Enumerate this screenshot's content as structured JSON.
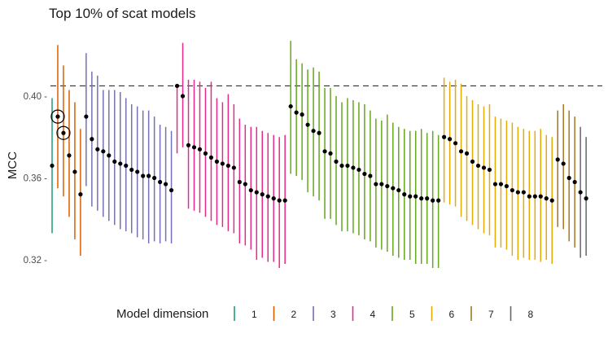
{
  "chart_data": {
    "type": "errorbar",
    "title": "Top 10% of scat models",
    "xlabel": "",
    "ylabel": "MCC",
    "ylim": [
      0.312,
      0.43
    ],
    "yticks": [
      0.32,
      0.36,
      0.4
    ],
    "ytick_labels": [
      "0.32 -",
      "0.36 -",
      "0.40 -"
    ],
    "reference_line": 0.405,
    "legend": {
      "title": "Model dimension",
      "position": "bottom",
      "entries": [
        {
          "label": "1",
          "color": "#1B9E77"
        },
        {
          "label": "2",
          "color": "#D95F02"
        },
        {
          "label": "3",
          "color": "#7570B3"
        },
        {
          "label": "4",
          "color": "#E7298A"
        },
        {
          "label": "5",
          "color": "#66A61E"
        },
        {
          "label": "6",
          "color": "#E6AB02"
        },
        {
          "label": "7",
          "color": "#A6761D"
        },
        {
          "label": "8",
          "color": "#666666"
        }
      ]
    },
    "groups": [
      {
        "dimension": "1",
        "color": "#1B9E77",
        "models": [
          {
            "mcc": 0.366,
            "lower": 0.333,
            "upper": 0.399
          }
        ]
      },
      {
        "dimension": "2",
        "color": "#D95F02",
        "models": [
          {
            "mcc": 0.39,
            "lower": 0.355,
            "upper": 0.425,
            "highlighted": true
          },
          {
            "mcc": 0.382,
            "lower": 0.351,
            "upper": 0.415,
            "highlighted": true
          },
          {
            "mcc": 0.371,
            "lower": 0.341,
            "upper": 0.403
          },
          {
            "mcc": 0.363,
            "lower": 0.33,
            "upper": 0.397
          },
          {
            "mcc": 0.352,
            "lower": 0.322,
            "upper": 0.384
          }
        ]
      },
      {
        "dimension": "3",
        "color": "#7570B3",
        "models": [
          {
            "mcc": 0.39,
            "lower": 0.356,
            "upper": 0.421
          },
          {
            "mcc": 0.379,
            "lower": 0.346,
            "upper": 0.412
          },
          {
            "mcc": 0.374,
            "lower": 0.344,
            "upper": 0.41
          },
          {
            "mcc": 0.373,
            "lower": 0.341,
            "upper": 0.403
          },
          {
            "mcc": 0.371,
            "lower": 0.339,
            "upper": 0.403
          },
          {
            "mcc": 0.368,
            "lower": 0.337,
            "upper": 0.403
          },
          {
            "mcc": 0.367,
            "lower": 0.335,
            "upper": 0.402
          },
          {
            "mcc": 0.366,
            "lower": 0.334,
            "upper": 0.399
          },
          {
            "mcc": 0.364,
            "lower": 0.333,
            "upper": 0.396
          },
          {
            "mcc": 0.363,
            "lower": 0.331,
            "upper": 0.395
          },
          {
            "mcc": 0.361,
            "lower": 0.33,
            "upper": 0.393
          },
          {
            "mcc": 0.361,
            "lower": 0.328,
            "upper": 0.393
          },
          {
            "mcc": 0.36,
            "lower": 0.329,
            "upper": 0.39
          },
          {
            "mcc": 0.358,
            "lower": 0.328,
            "upper": 0.386
          },
          {
            "mcc": 0.357,
            "lower": 0.329,
            "upper": 0.385
          },
          {
            "mcc": 0.354,
            "lower": 0.328,
            "upper": 0.383
          }
        ]
      },
      {
        "dimension": "4",
        "color": "#E7298A",
        "models": [
          {
            "mcc": 0.405,
            "lower": 0.372,
            "upper": 0.404
          },
          {
            "mcc": 0.4,
            "lower": 0.375,
            "upper": 0.426
          },
          {
            "mcc": 0.376,
            "lower": 0.345,
            "upper": 0.408
          },
          {
            "mcc": 0.375,
            "lower": 0.344,
            "upper": 0.408
          },
          {
            "mcc": 0.374,
            "lower": 0.343,
            "upper": 0.407
          },
          {
            "mcc": 0.372,
            "lower": 0.341,
            "upper": 0.404
          },
          {
            "mcc": 0.37,
            "lower": 0.339,
            "upper": 0.407
          },
          {
            "mcc": 0.368,
            "lower": 0.337,
            "upper": 0.399
          },
          {
            "mcc": 0.367,
            "lower": 0.336,
            "upper": 0.397
          },
          {
            "mcc": 0.366,
            "lower": 0.334,
            "upper": 0.401
          },
          {
            "mcc": 0.365,
            "lower": 0.333,
            "upper": 0.396
          },
          {
            "mcc": 0.358,
            "lower": 0.328,
            "upper": 0.389
          },
          {
            "mcc": 0.357,
            "lower": 0.327,
            "upper": 0.386
          },
          {
            "mcc": 0.354,
            "lower": 0.325,
            "upper": 0.385
          },
          {
            "mcc": 0.353,
            "lower": 0.32,
            "upper": 0.385
          },
          {
            "mcc": 0.352,
            "lower": 0.321,
            "upper": 0.383
          },
          {
            "mcc": 0.351,
            "lower": 0.319,
            "upper": 0.382
          },
          {
            "mcc": 0.35,
            "lower": 0.319,
            "upper": 0.381
          },
          {
            "mcc": 0.349,
            "lower": 0.316,
            "upper": 0.38
          },
          {
            "mcc": 0.349,
            "lower": 0.318,
            "upper": 0.381
          }
        ]
      },
      {
        "dimension": "5",
        "color": "#66A61E",
        "models": [
          {
            "mcc": 0.395,
            "lower": 0.362,
            "upper": 0.427
          },
          {
            "mcc": 0.392,
            "lower": 0.361,
            "upper": 0.418
          },
          {
            "mcc": 0.391,
            "lower": 0.359,
            "upper": 0.416
          },
          {
            "mcc": 0.386,
            "lower": 0.353,
            "upper": 0.413
          },
          {
            "mcc": 0.383,
            "lower": 0.351,
            "upper": 0.414
          },
          {
            "mcc": 0.382,
            "lower": 0.349,
            "upper": 0.412
          },
          {
            "mcc": 0.373,
            "lower": 0.34,
            "upper": 0.404
          },
          {
            "mcc": 0.372,
            "lower": 0.34,
            "upper": 0.404
          },
          {
            "mcc": 0.368,
            "lower": 0.337,
            "upper": 0.4
          },
          {
            "mcc": 0.366,
            "lower": 0.334,
            "upper": 0.397
          },
          {
            "mcc": 0.366,
            "lower": 0.334,
            "upper": 0.399
          },
          {
            "mcc": 0.365,
            "lower": 0.333,
            "upper": 0.398
          },
          {
            "mcc": 0.364,
            "lower": 0.332,
            "upper": 0.397
          },
          {
            "mcc": 0.362,
            "lower": 0.33,
            "upper": 0.396
          },
          {
            "mcc": 0.361,
            "lower": 0.329,
            "upper": 0.393
          },
          {
            "mcc": 0.357,
            "lower": 0.326,
            "upper": 0.389
          },
          {
            "mcc": 0.357,
            "lower": 0.325,
            "upper": 0.388
          },
          {
            "mcc": 0.356,
            "lower": 0.324,
            "upper": 0.391
          },
          {
            "mcc": 0.355,
            "lower": 0.322,
            "upper": 0.387
          },
          {
            "mcc": 0.354,
            "lower": 0.321,
            "upper": 0.385
          },
          {
            "mcc": 0.352,
            "lower": 0.32,
            "upper": 0.384
          },
          {
            "mcc": 0.351,
            "lower": 0.32,
            "upper": 0.383
          },
          {
            "mcc": 0.351,
            "lower": 0.318,
            "upper": 0.383
          },
          {
            "mcc": 0.35,
            "lower": 0.318,
            "upper": 0.384
          },
          {
            "mcc": 0.35,
            "lower": 0.318,
            "upper": 0.382
          },
          {
            "mcc": 0.349,
            "lower": 0.316,
            "upper": 0.383
          },
          {
            "mcc": 0.349,
            "lower": 0.316,
            "upper": 0.381
          }
        ]
      },
      {
        "dimension": "6",
        "color": "#E6AB02",
        "models": [
          {
            "mcc": 0.38,
            "lower": 0.348,
            "upper": 0.409
          },
          {
            "mcc": 0.379,
            "lower": 0.347,
            "upper": 0.407
          },
          {
            "mcc": 0.377,
            "lower": 0.346,
            "upper": 0.408
          },
          {
            "mcc": 0.373,
            "lower": 0.341,
            "upper": 0.406
          },
          {
            "mcc": 0.372,
            "lower": 0.339,
            "upper": 0.4
          },
          {
            "mcc": 0.368,
            "lower": 0.337,
            "upper": 0.398
          },
          {
            "mcc": 0.366,
            "lower": 0.335,
            "upper": 0.396
          },
          {
            "mcc": 0.365,
            "lower": 0.333,
            "upper": 0.395
          },
          {
            "mcc": 0.364,
            "lower": 0.332,
            "upper": 0.396
          },
          {
            "mcc": 0.357,
            "lower": 0.326,
            "upper": 0.39
          },
          {
            "mcc": 0.357,
            "lower": 0.326,
            "upper": 0.389
          },
          {
            "mcc": 0.356,
            "lower": 0.325,
            "upper": 0.388
          },
          {
            "mcc": 0.354,
            "lower": 0.322,
            "upper": 0.387
          },
          {
            "mcc": 0.353,
            "lower": 0.32,
            "upper": 0.385
          },
          {
            "mcc": 0.353,
            "lower": 0.321,
            "upper": 0.384
          },
          {
            "mcc": 0.351,
            "lower": 0.32,
            "upper": 0.383
          },
          {
            "mcc": 0.351,
            "lower": 0.32,
            "upper": 0.383
          },
          {
            "mcc": 0.351,
            "lower": 0.319,
            "upper": 0.384
          },
          {
            "mcc": 0.35,
            "lower": 0.32,
            "upper": 0.381
          },
          {
            "mcc": 0.349,
            "lower": 0.318,
            "upper": 0.38
          }
        ]
      },
      {
        "dimension": "7",
        "color": "#A6761D",
        "models": [
          {
            "mcc": 0.369,
            "lower": 0.336,
            "upper": 0.393
          },
          {
            "mcc": 0.367,
            "lower": 0.335,
            "upper": 0.396
          },
          {
            "mcc": 0.36,
            "lower": 0.329,
            "upper": 0.393
          },
          {
            "mcc": 0.358,
            "lower": 0.326,
            "upper": 0.39
          }
        ]
      },
      {
        "dimension": "8",
        "color": "#666666",
        "models": [
          {
            "mcc": 0.353,
            "lower": 0.321,
            "upper": 0.385
          },
          {
            "mcc": 0.35,
            "lower": 0.322,
            "upper": 0.38
          }
        ]
      }
    ]
  }
}
